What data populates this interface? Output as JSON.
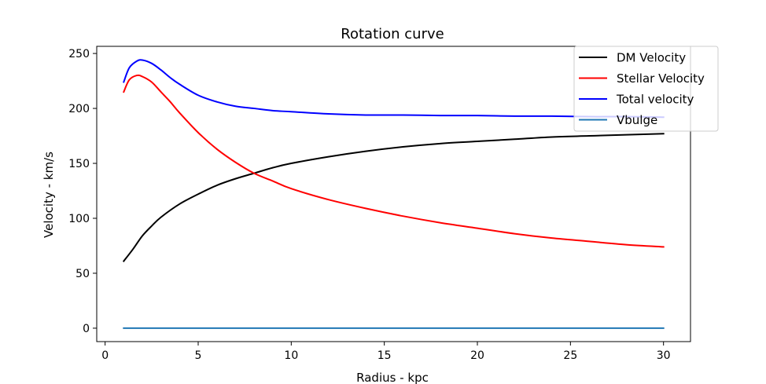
{
  "chart_data": {
    "type": "line",
    "title": "Rotation curve",
    "xlabel": "Radius - kpc",
    "ylabel": "Velocity - km/s",
    "xlim": [
      -0.45,
      31.45
    ],
    "ylim": [
      -12.2,
      256.5
    ],
    "xticks": [
      0,
      5,
      10,
      15,
      20,
      25,
      30
    ],
    "yticks": [
      0,
      50,
      100,
      150,
      200,
      250
    ],
    "grid": false,
    "legend_position": "top-right",
    "series": [
      {
        "name": "DM Velocity",
        "color": "#000000",
        "x": [
          1,
          1.5,
          2,
          2.5,
          3,
          4,
          5,
          6,
          7,
          8,
          9,
          10,
          12,
          14,
          16,
          18,
          20,
          22,
          24,
          26,
          28,
          30
        ],
        "y": [
          61,
          72,
          84,
          93,
          101,
          113,
          122,
          130,
          136,
          141,
          146,
          150,
          156,
          161,
          165,
          168,
          170,
          172,
          174,
          175,
          176,
          177
        ]
      },
      {
        "name": "Stellar Velocity",
        "color": "#ff0000",
        "x": [
          1,
          1.3,
          1.7,
          2,
          2.5,
          3,
          3.5,
          4,
          5,
          6,
          7,
          8,
          9,
          10,
          12,
          14,
          16,
          18,
          20,
          22,
          24,
          26,
          28,
          30
        ],
        "y": [
          215,
          226,
          230,
          229,
          224,
          215,
          206,
          196,
          178,
          163,
          151,
          141,
          134,
          127,
          117,
          109,
          102,
          96,
          91,
          86,
          82,
          79,
          76,
          74
        ]
      },
      {
        "name": "Total velocity",
        "color": "#0000ff",
        "x": [
          1,
          1.3,
          1.7,
          2,
          2.5,
          3,
          3.5,
          4,
          5,
          6,
          7,
          8,
          9,
          10,
          12,
          14,
          16,
          18,
          20,
          22,
          24,
          26,
          28,
          30
        ],
        "y": [
          224,
          237,
          243,
          244,
          241,
          235,
          228,
          222,
          212,
          206,
          202,
          200,
          198,
          197,
          195,
          194,
          194,
          193.5,
          193.5,
          193,
          193,
          192.5,
          192.5,
          192
        ]
      },
      {
        "name": "Vbulge",
        "color": "#1f77b4",
        "x": [
          1,
          30
        ],
        "y": [
          0,
          0
        ]
      }
    ]
  }
}
